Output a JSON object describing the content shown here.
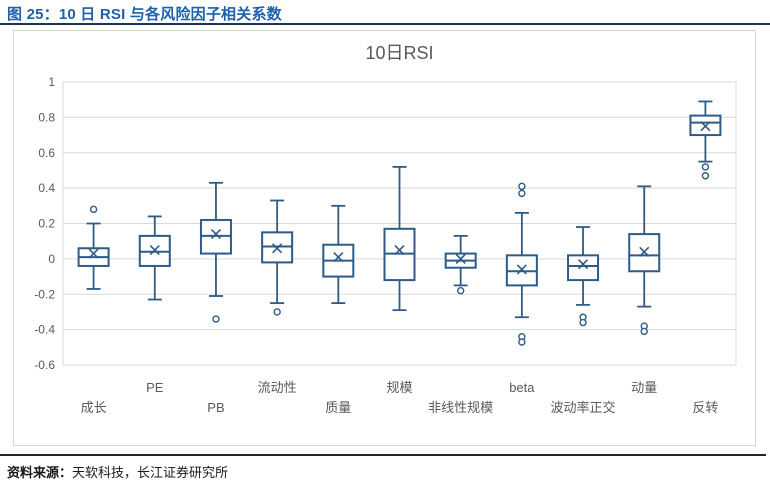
{
  "header": {
    "title": "图 25：10 日 RSI 与各风险因子相关系数"
  },
  "footer": {
    "source_label": "资料来源：",
    "source_text": "天软科技，长江证券研究所"
  },
  "colors": {
    "caption_blue": "#1b61ab",
    "caption_rule_navy": "#17375e",
    "box_stroke": "#2e5b87",
    "grid_gray": "#d9d9d9",
    "axis_text_gray": "#595959",
    "chart_title_gray": "#595959",
    "footer_rule_dark": "#262626",
    "frame_border": "#d6d6d6"
  },
  "chart_data": {
    "type": "boxplot",
    "title": "10日RSI",
    "xlabel": "",
    "ylabel": "",
    "ylim": [
      -0.6,
      1
    ],
    "grid": true,
    "yticks": [
      {
        "value": 1,
        "label": "1"
      },
      {
        "value": 0.8,
        "label": "0.8"
      },
      {
        "value": 0.6,
        "label": "0.6"
      },
      {
        "value": 0.4,
        "label": "0.4"
      },
      {
        "value": 0.2,
        "label": "0.2"
      },
      {
        "value": 0,
        "label": "0"
      },
      {
        "value": -0.2,
        "label": "-0.2"
      },
      {
        "value": -0.4,
        "label": "-0.4"
      },
      {
        "value": -0.6,
        "label": "-0.6"
      }
    ],
    "series": [
      {
        "id": "growth",
        "label": "成长",
        "label_row": "lower",
        "low": -0.17,
        "q1": -0.04,
        "median": 0.01,
        "mean": 0.03,
        "q3": 0.06,
        "high": 0.2,
        "outliers": [
          0.28
        ]
      },
      {
        "id": "pe",
        "label": "PE",
        "label_row": "upper",
        "low": -0.23,
        "q1": -0.04,
        "median": 0.04,
        "mean": 0.05,
        "q3": 0.13,
        "high": 0.24,
        "outliers": []
      },
      {
        "id": "pb",
        "label": "PB",
        "label_row": "lower",
        "low": -0.21,
        "q1": 0.03,
        "median": 0.13,
        "mean": 0.14,
        "q3": 0.22,
        "high": 0.43,
        "outliers": [
          -0.34
        ]
      },
      {
        "id": "liquidity",
        "label": "流动性",
        "label_row": "upper",
        "low": -0.25,
        "q1": -0.02,
        "median": 0.07,
        "mean": 0.06,
        "q3": 0.15,
        "high": 0.33,
        "outliers": [
          -0.3
        ]
      },
      {
        "id": "quality",
        "label": "质量",
        "label_row": "lower",
        "low": -0.25,
        "q1": -0.1,
        "median": -0.01,
        "mean": 0.01,
        "q3": 0.08,
        "high": 0.3,
        "outliers": []
      },
      {
        "id": "size",
        "label": "规模",
        "label_row": "upper",
        "low": -0.29,
        "q1": -0.12,
        "median": 0.03,
        "mean": 0.05,
        "q3": 0.17,
        "high": 0.52,
        "outliers": []
      },
      {
        "id": "nonlinear-size",
        "label": "非线性规模",
        "label_row": "lower",
        "low": -0.15,
        "q1": -0.05,
        "median": -0.01,
        "mean": 0.0,
        "q3": 0.03,
        "high": 0.13,
        "outliers": [
          -0.18
        ]
      },
      {
        "id": "beta",
        "label": "beta",
        "label_row": "upper",
        "low": -0.33,
        "q1": -0.15,
        "median": -0.07,
        "mean": -0.06,
        "q3": 0.02,
        "high": 0.26,
        "outliers": [
          0.41,
          0.37,
          -0.44,
          -0.47
        ]
      },
      {
        "id": "vol-orthogonal",
        "label": "波动率正交",
        "label_row": "lower",
        "low": -0.26,
        "q1": -0.12,
        "median": -0.04,
        "mean": -0.03,
        "q3": 0.02,
        "high": 0.18,
        "outliers": [
          -0.33,
          -0.36
        ]
      },
      {
        "id": "momentum",
        "label": "动量",
        "label_row": "upper",
        "low": -0.27,
        "q1": -0.07,
        "median": 0.02,
        "mean": 0.04,
        "q3": 0.14,
        "high": 0.41,
        "outliers": [
          -0.38,
          -0.41
        ]
      },
      {
        "id": "reversal",
        "label": "反转",
        "label_row": "lower",
        "low": 0.55,
        "q1": 0.7,
        "median": 0.77,
        "mean": 0.75,
        "q3": 0.81,
        "high": 0.89,
        "outliers": [
          0.52,
          0.47
        ]
      }
    ]
  }
}
